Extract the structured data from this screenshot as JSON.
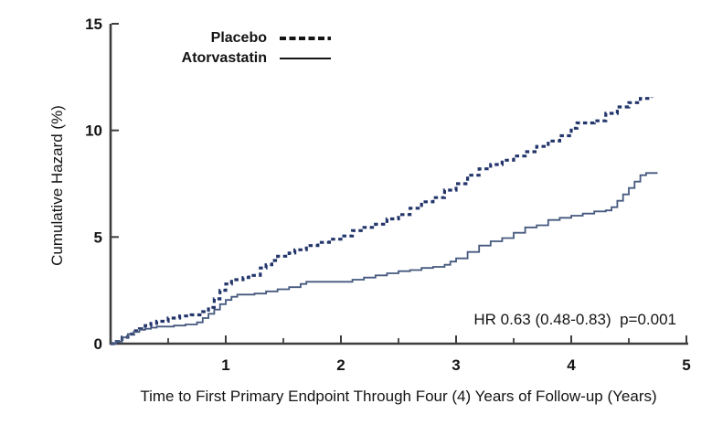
{
  "chart_data": {
    "type": "line",
    "subtype": "step-cumulative-hazard",
    "title": "",
    "xlabel": "Time to First Primary Endpoint Through Four (4) Years of Follow-up (Years)",
    "ylabel": "Cumulative Hazard (%)",
    "xlim": [
      0,
      5
    ],
    "ylim": [
      0,
      15
    ],
    "x_major_ticks": [
      1,
      2,
      3,
      4,
      5
    ],
    "x_minor_ticks": [
      0.5,
      1.5,
      2.5,
      3.5,
      4.5
    ],
    "y_ticks": [
      0,
      5,
      10,
      15
    ],
    "grid": false,
    "legend_position": "top-left-inside",
    "annotation": "HR 0.63 (0.48-0.83)  p=0.001",
    "axis_color": "#3d3d3d",
    "text_color": "#141414",
    "legend_sample_color": "#141414",
    "series": [
      {
        "name": "Placebo",
        "style": "dashed",
        "color": "#23366b",
        "points": [
          [
            0,
            0
          ],
          [
            0.05,
            0.1
          ],
          [
            0.1,
            0.3
          ],
          [
            0.15,
            0.45
          ],
          [
            0.2,
            0.6
          ],
          [
            0.25,
            0.7
          ],
          [
            0.3,
            0.85
          ],
          [
            0.35,
            0.95
          ],
          [
            0.4,
            1.05
          ],
          [
            0.5,
            1.2
          ],
          [
            0.6,
            1.3
          ],
          [
            0.7,
            1.35
          ],
          [
            0.8,
            1.5
          ],
          [
            0.85,
            1.7
          ],
          [
            0.9,
            2.1
          ],
          [
            0.95,
            2.5
          ],
          [
            1.0,
            2.8
          ],
          [
            1.05,
            3.0
          ],
          [
            1.15,
            3.1
          ],
          [
            1.2,
            3.2
          ],
          [
            1.3,
            3.55
          ],
          [
            1.35,
            3.7
          ],
          [
            1.4,
            3.9
          ],
          [
            1.45,
            4.1
          ],
          [
            1.55,
            4.25
          ],
          [
            1.6,
            4.4
          ],
          [
            1.7,
            4.6
          ],
          [
            1.8,
            4.75
          ],
          [
            1.9,
            4.9
          ],
          [
            2.0,
            5.05
          ],
          [
            2.1,
            5.3
          ],
          [
            2.2,
            5.45
          ],
          [
            2.3,
            5.6
          ],
          [
            2.4,
            5.85
          ],
          [
            2.5,
            6.05
          ],
          [
            2.6,
            6.35
          ],
          [
            2.7,
            6.65
          ],
          [
            2.8,
            6.85
          ],
          [
            2.9,
            7.2
          ],
          [
            3.0,
            7.5
          ],
          [
            3.1,
            7.9
          ],
          [
            3.2,
            8.2
          ],
          [
            3.3,
            8.4
          ],
          [
            3.4,
            8.6
          ],
          [
            3.5,
            8.8
          ],
          [
            3.6,
            9.0
          ],
          [
            3.7,
            9.25
          ],
          [
            3.8,
            9.5
          ],
          [
            3.9,
            9.75
          ],
          [
            4.0,
            10.1
          ],
          [
            4.05,
            10.35
          ],
          [
            4.2,
            10.45
          ],
          [
            4.3,
            10.8
          ],
          [
            4.4,
            11.1
          ],
          [
            4.5,
            11.3
          ],
          [
            4.6,
            11.5
          ],
          [
            4.7,
            11.55
          ]
        ]
      },
      {
        "name": "Atorvastatin",
        "style": "solid",
        "color": "#46597f",
        "points": [
          [
            0,
            0
          ],
          [
            0.05,
            0.1
          ],
          [
            0.1,
            0.3
          ],
          [
            0.15,
            0.45
          ],
          [
            0.2,
            0.55
          ],
          [
            0.25,
            0.65
          ],
          [
            0.3,
            0.7
          ],
          [
            0.35,
            0.75
          ],
          [
            0.4,
            0.8
          ],
          [
            0.55,
            0.85
          ],
          [
            0.65,
            0.9
          ],
          [
            0.75,
            1.0
          ],
          [
            0.8,
            1.2
          ],
          [
            0.85,
            1.4
          ],
          [
            0.9,
            1.6
          ],
          [
            0.95,
            1.85
          ],
          [
            1.0,
            2.05
          ],
          [
            1.05,
            2.2
          ],
          [
            1.1,
            2.3
          ],
          [
            1.25,
            2.35
          ],
          [
            1.35,
            2.45
          ],
          [
            1.45,
            2.55
          ],
          [
            1.55,
            2.65
          ],
          [
            1.65,
            2.8
          ],
          [
            1.7,
            2.9
          ],
          [
            2.05,
            2.9
          ],
          [
            2.1,
            3.0
          ],
          [
            2.2,
            3.1
          ],
          [
            2.3,
            3.2
          ],
          [
            2.4,
            3.3
          ],
          [
            2.5,
            3.4
          ],
          [
            2.6,
            3.45
          ],
          [
            2.7,
            3.55
          ],
          [
            2.8,
            3.6
          ],
          [
            2.9,
            3.7
          ],
          [
            2.95,
            3.85
          ],
          [
            3.0,
            4.0
          ],
          [
            3.1,
            4.3
          ],
          [
            3.2,
            4.6
          ],
          [
            3.3,
            4.8
          ],
          [
            3.4,
            4.95
          ],
          [
            3.5,
            5.2
          ],
          [
            3.6,
            5.45
          ],
          [
            3.7,
            5.55
          ],
          [
            3.8,
            5.8
          ],
          [
            3.9,
            5.9
          ],
          [
            4.0,
            6.0
          ],
          [
            4.1,
            6.1
          ],
          [
            4.2,
            6.2
          ],
          [
            4.3,
            6.25
          ],
          [
            4.35,
            6.4
          ],
          [
            4.4,
            6.7
          ],
          [
            4.45,
            7.0
          ],
          [
            4.5,
            7.3
          ],
          [
            4.55,
            7.6
          ],
          [
            4.6,
            7.9
          ],
          [
            4.65,
            8.0
          ],
          [
            4.75,
            8.0
          ]
        ]
      }
    ]
  }
}
